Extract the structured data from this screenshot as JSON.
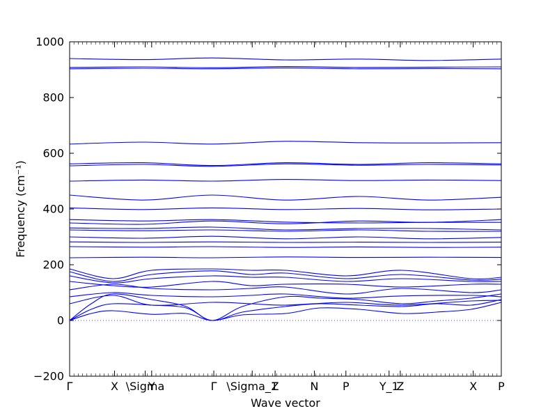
{
  "chart_data": {
    "type": "line",
    "title": "",
    "xlabel": "Wave vector",
    "ylabel": "Frequency (cm⁻¹)",
    "ylim": [
      -200,
      1000
    ],
    "y_ticks": [
      -200,
      0,
      200,
      400,
      600,
      800,
      1000
    ],
    "y_tick_labels": [
      "−200",
      "0",
      "200",
      "400",
      "600",
      "800",
      "1000"
    ],
    "x_range": [
      0,
      1
    ],
    "x_ticks": [
      {
        "x": 0.0,
        "label": "Γ"
      },
      {
        "x": 0.104,
        "label": "X"
      },
      {
        "x": 0.175,
        "label": "\\Sigma"
      },
      {
        "x": 0.19,
        "label": "Y"
      },
      {
        "x": 0.334,
        "label": "Γ"
      },
      {
        "x": 0.423,
        "label": "\\Sigma_1"
      },
      {
        "x": 0.476,
        "label": "Z"
      },
      {
        "x": 0.567,
        "label": "N"
      },
      {
        "x": 0.64,
        "label": "P"
      },
      {
        "x": 0.74,
        "label": "Y_1"
      },
      {
        "x": 0.766,
        "label": "Z"
      },
      {
        "x": 0.935,
        "label": "X"
      },
      {
        "x": 1.0,
        "label": "P"
      }
    ],
    "zero_line": true,
    "colors": {
      "bands": "#0000ff",
      "zero_line": "#0000ff"
    },
    "series": [
      {
        "x": [
          0,
          0.17,
          0.33,
          0.5,
          0.67,
          0.83,
          1.0
        ],
        "values": [
          940,
          936,
          942,
          935,
          938,
          933,
          938
        ]
      },
      {
        "x": [
          0,
          0.17,
          0.33,
          0.5,
          0.67,
          0.83,
          1.0
        ],
        "values": [
          908,
          910,
          907,
          911,
          908,
          909,
          910
        ]
      },
      {
        "x": [
          0,
          0.17,
          0.33,
          0.5,
          0.67,
          0.83,
          1.0
        ],
        "values": [
          903,
          905,
          903,
          906,
          903,
          904,
          903
        ]
      },
      {
        "x": [
          0,
          0.17,
          0.33,
          0.5,
          0.67,
          0.83,
          1.0
        ],
        "values": [
          633,
          640,
          633,
          643,
          638,
          637,
          638
        ]
      },
      {
        "x": [
          0,
          0.17,
          0.33,
          0.5,
          0.67,
          0.83,
          1.0
        ],
        "values": [
          562,
          566,
          556,
          566,
          560,
          566,
          562
        ]
      },
      {
        "x": [
          0,
          0.17,
          0.33,
          0.5,
          0.67,
          0.83,
          1.0
        ],
        "values": [
          555,
          560,
          553,
          562,
          557,
          560,
          558
        ]
      },
      {
        "x": [
          0,
          0.17,
          0.33,
          0.5,
          0.67,
          0.83,
          1.0
        ],
        "values": [
          500,
          504,
          500,
          506,
          502,
          504,
          502
        ]
      },
      {
        "x": [
          0,
          0.17,
          0.33,
          0.5,
          0.67,
          0.83,
          1.0
        ],
        "values": [
          450,
          432,
          450,
          432,
          445,
          432,
          442
        ]
      },
      {
        "x": [
          0,
          0.17,
          0.33,
          0.5,
          0.67,
          0.83,
          1.0
        ],
        "values": [
          404,
          398,
          404,
          398,
          402,
          397,
          400
        ]
      },
      {
        "x": [
          0,
          0.17,
          0.33,
          0.5,
          0.67,
          0.83,
          1.0
        ],
        "values": [
          362,
          357,
          362,
          353,
          350,
          352,
          352
        ]
      },
      {
        "x": [
          0,
          0.17,
          0.33,
          0.5,
          0.67,
          0.83,
          1.0
        ],
        "values": [
          350,
          345,
          357,
          347,
          357,
          352,
          362
        ]
      },
      {
        "x": [
          0,
          0.17,
          0.33,
          0.5,
          0.67,
          0.83,
          1.0
        ],
        "values": [
          332,
          330,
          335,
          325,
          330,
          330,
          325
        ]
      },
      {
        "x": [
          0,
          0.17,
          0.33,
          0.5,
          0.67,
          0.83,
          1.0
        ],
        "values": [
          325,
          322,
          325,
          320,
          325,
          320,
          320
        ]
      },
      {
        "x": [
          0,
          0.17,
          0.33,
          0.5,
          0.67,
          0.83,
          1.0
        ],
        "values": [
          300,
          295,
          302,
          293,
          300,
          293,
          298
        ]
      },
      {
        "x": [
          0,
          0.17,
          0.33,
          0.5,
          0.67,
          0.83,
          1.0
        ],
        "values": [
          282,
          280,
          282,
          280,
          281,
          280,
          281
        ]
      },
      {
        "x": [
          0,
          0.17,
          0.33,
          0.5,
          0.67,
          0.83,
          1.0
        ],
        "values": [
          265,
          263,
          265,
          262,
          264,
          262,
          263
        ]
      },
      {
        "x": [
          0,
          0.17,
          0.33,
          0.5,
          0.67,
          0.83,
          1.0
        ],
        "values": [
          225,
          227,
          225,
          228,
          226,
          227,
          226
        ]
      },
      {
        "x": [
          0,
          0.1,
          0.19,
          0.33,
          0.42,
          0.5,
          0.64,
          0.77,
          0.93,
          1.0
        ],
        "values": [
          185,
          150,
          180,
          185,
          180,
          180,
          160,
          180,
          150,
          155
        ]
      },
      {
        "x": [
          0,
          0.1,
          0.19,
          0.33,
          0.42,
          0.5,
          0.64,
          0.77,
          0.93,
          1.0
        ],
        "values": [
          175,
          140,
          165,
          178,
          165,
          170,
          150,
          165,
          145,
          148
        ]
      },
      {
        "x": [
          0,
          0.1,
          0.19,
          0.33,
          0.42,
          0.5,
          0.64,
          0.77,
          0.93,
          1.0
        ],
        "values": [
          160,
          135,
          150,
          160,
          155,
          155,
          140,
          150,
          140,
          140
        ]
      },
      {
        "x": [
          0,
          0.1,
          0.19,
          0.33,
          0.42,
          0.5,
          0.64,
          0.77,
          0.93,
          1.0
        ],
        "values": [
          140,
          125,
          120,
          140,
          125,
          130,
          130,
          120,
          130,
          130
        ]
      },
      {
        "x": [
          0,
          0.1,
          0.19,
          0.33,
          0.42,
          0.5,
          0.64,
          0.77,
          0.93,
          1.0
        ],
        "values": [
          110,
          130,
          115,
          110,
          115,
          120,
          95,
          115,
          100,
          110
        ]
      },
      {
        "x": [
          0,
          0.1,
          0.19,
          0.33,
          0.42,
          0.5,
          0.64,
          0.77,
          0.93,
          1.0
        ],
        "values": [
          85,
          100,
          90,
          85,
          90,
          95,
          80,
          88,
          90,
          85
        ]
      },
      {
        "x": [
          0,
          0.1,
          0.19,
          0.33,
          0.42,
          0.5,
          0.64,
          0.77,
          0.93,
          1.0
        ],
        "values": [
          60,
          90,
          55,
          65,
          60,
          55,
          65,
          55,
          70,
          72
        ]
      },
      {
        "x": [
          0,
          0.05,
          0.1,
          0.19,
          0.27,
          0.33,
          0.4,
          0.5,
          0.58,
          0.67,
          0.77,
          0.85,
          0.93,
          1.0
        ],
        "values": [
          0,
          60,
          95,
          75,
          50,
          0,
          50,
          85,
          80,
          75,
          60,
          70,
          80,
          95
        ]
      },
      {
        "x": [
          0,
          0.05,
          0.1,
          0.19,
          0.27,
          0.33,
          0.4,
          0.5,
          0.58,
          0.67,
          0.77,
          0.85,
          0.93,
          1.0
        ],
        "values": [
          0,
          40,
          60,
          55,
          45,
          0,
          30,
          50,
          60,
          55,
          50,
          60,
          55,
          75
        ]
      },
      {
        "x": [
          0,
          0.05,
          0.1,
          0.19,
          0.27,
          0.33,
          0.4,
          0.5,
          0.58,
          0.67,
          0.77,
          0.85,
          0.93,
          1.0
        ],
        "values": [
          0,
          25,
          35,
          22,
          25,
          0,
          20,
          25,
          45,
          40,
          25,
          30,
          40,
          65
        ]
      }
    ]
  }
}
